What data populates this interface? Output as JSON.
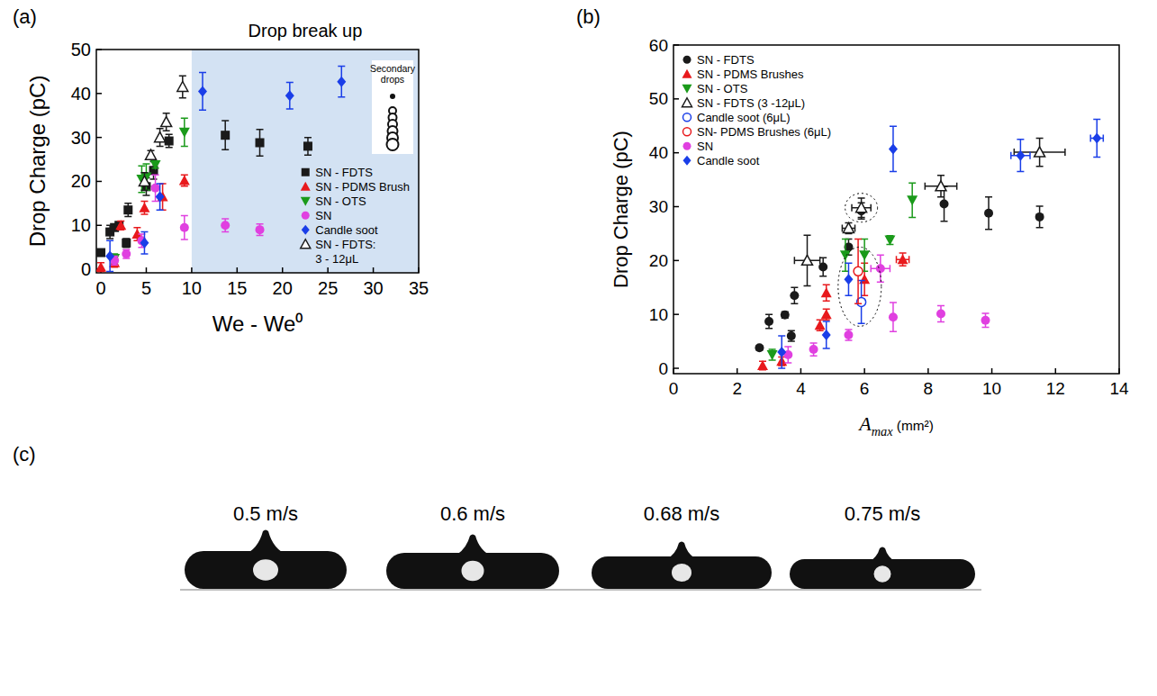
{
  "chart_data": [
    {
      "type": "scatter",
      "panel_label": "(a)",
      "x_label": "We - We⁰",
      "y_label": "Drop Charge (pC)",
      "xlim": [
        -0.5,
        35
      ],
      "ylim": [
        -0.8,
        50
      ],
      "xticks": [
        0,
        5,
        10,
        15,
        20,
        25,
        30,
        35
      ],
      "yticks": [
        0,
        10,
        20,
        30,
        40,
        50
      ],
      "legend": "lower right",
      "shaded_region": {
        "text": "Drop break up",
        "x": [
          10,
          35
        ]
      },
      "inset_label": "Secondary drops",
      "series": [
        {
          "name": "SN - FDTS",
          "color": "#1a1a1a",
          "marker": "square",
          "x": [
            0,
            1,
            1.5,
            2,
            2.8,
            3,
            5,
            5.8,
            7.5,
            13.7,
            17.5,
            22.8
          ],
          "values": [
            3.8,
            8.5,
            9.5,
            10,
            6,
            13.5,
            18.8,
            22.5,
            29.2,
            30.5,
            28.8,
            28
          ],
          "errors": [
            0.5,
            1.5,
            0.5,
            0.5,
            1,
            1.5,
            2,
            2,
            1.5,
            3.3,
            3,
            2
          ]
        },
        {
          "name": "SN - PDMS Brush",
          "color": "#e8191c",
          "marker": "triangle",
          "x": [
            0,
            1.5,
            2.2,
            4,
            4.8,
            6.8,
            9.2
          ],
          "values": [
            0.5,
            1.5,
            10,
            8,
            14,
            16.5,
            20.2
          ],
          "errors": [
            1,
            1,
            1,
            1.5,
            1.5,
            3,
            1.3
          ]
        },
        {
          "name": "SN - OTS",
          "color": "#1a9a1a",
          "marker": "triangle-down",
          "x": [
            1.5,
            4.5,
            5,
            6,
            9.2
          ],
          "values": [
            2.5,
            20.5,
            21,
            23.8,
            31.2
          ],
          "errors": [
            1,
            3,
            3,
            0.8,
            3.2
          ]
        },
        {
          "name": "SN",
          "color": "#e040e0",
          "marker": "circle",
          "x": [
            1.5,
            2.8,
            4.5,
            6,
            9.2,
            13.7,
            17.5
          ],
          "values": [
            2,
            3.5,
            6.5,
            18.5,
            9.5,
            10,
            9
          ],
          "errors": [
            1,
            1,
            1.5,
            3,
            2.7,
            1.5,
            1.3
          ]
        },
        {
          "name": "Candle soot",
          "color": "#1a3ee8",
          "marker": "diamond",
          "x": [
            1,
            4.8,
            6.5,
            11.2,
            20.8,
            26.5
          ],
          "values": [
            3,
            6,
            16.5,
            40.5,
            39.5,
            42.7
          ],
          "errors": [
            3.5,
            2.5,
            3,
            4.3,
            3,
            3.5
          ]
        },
        {
          "name": "SN - FDTS: 3 - 12μL",
          "color": "#1a1a1a",
          "marker": "open-triangle",
          "x": [
            4.8,
            5.5,
            6.5,
            7.2,
            9
          ],
          "values": [
            20,
            26,
            30,
            33.5,
            41.5
          ],
          "errors": [
            2,
            1,
            2,
            2,
            2.5
          ]
        }
      ]
    },
    {
      "type": "scatter",
      "panel_label": "(b)",
      "x_label": "A",
      "x_label_subscript": "max",
      "x_label_suffix": " (mm²)",
      "y_label": "Drop Charge (pC)",
      "xlim": [
        0,
        14
      ],
      "ylim": [
        -1,
        60
      ],
      "xticks": [
        0,
        2,
        4,
        6,
        8,
        10,
        12,
        14
      ],
      "yticks": [
        0,
        10,
        20,
        30,
        40,
        50,
        60
      ],
      "legend": "upper left",
      "series": [
        {
          "name": "SN - FDTS",
          "color": "#1a1a1a",
          "marker": "circle",
          "x": [
            2.7,
            3,
            3.5,
            3.7,
            3.8,
            4.7,
            5.5,
            5.9,
            8.5,
            9.9,
            11.5
          ],
          "values": [
            3.8,
            8.7,
            9.9,
            6,
            13.5,
            18.8,
            22.5,
            29.2,
            30.5,
            28.8,
            28.1
          ],
          "errors": [
            0.4,
            1.3,
            0.6,
            1,
            1.5,
            1.7,
            1.5,
            1.5,
            3.2,
            3,
            2
          ]
        },
        {
          "name": "SN - PDMS Brushes",
          "color": "#e8191c",
          "marker": "triangle",
          "x": [
            2.8,
            3.4,
            4.6,
            4.8,
            4.8,
            6,
            7.2
          ],
          "values": [
            0.5,
            1.3,
            8,
            10,
            14,
            16.5,
            20.2
          ],
          "errors": [
            0.8,
            0.8,
            1,
            1,
            1.5,
            3,
            1.2
          ],
          "x_errors": [
            0,
            0,
            0,
            0,
            0,
            0,
            0.2
          ]
        },
        {
          "name": "SN - OTS",
          "color": "#1a9a1a",
          "marker": "triangle-down",
          "x": [
            3.1,
            5.4,
            6,
            6.8,
            7.5
          ],
          "values": [
            2.5,
            21,
            21,
            23.8,
            31.2
          ],
          "errors": [
            1,
            3,
            3,
            0.8,
            3.2
          ]
        },
        {
          "name": "SN - FDTS (3 -12μL)",
          "color": "#1a1a1a",
          "marker": "open-triangle",
          "x": [
            4.2,
            5.5,
            5.9,
            8.4,
            11.5
          ],
          "values": [
            20,
            26,
            29.8,
            33.8,
            40.1
          ],
          "errors": [
            4.7,
            1,
            1.8,
            2,
            2.6
          ],
          "x_errors": [
            0.4,
            0.2,
            0.3,
            0.5,
            0.8
          ]
        },
        {
          "name": "Candle soot (6μL)",
          "color": "#1a3ee8",
          "marker": "open-circle",
          "x": [
            5.9
          ],
          "values": [
            12.3
          ],
          "errors": [
            4
          ]
        },
        {
          "name": "SN- PDMS Brushes (6μL)",
          "color": "#e8191c",
          "marker": "open-circle",
          "x": [
            5.8
          ],
          "values": [
            18
          ],
          "errors": [
            6
          ]
        },
        {
          "name": "SN",
          "color": "#e040e0",
          "marker": "circle",
          "x": [
            3.6,
            4.4,
            5.5,
            6.5,
            6.9,
            8.4,
            9.8
          ],
          "values": [
            2.5,
            3.5,
            6.2,
            18.5,
            9.5,
            10.1,
            8.9
          ],
          "errors": [
            1.5,
            1.2,
            1,
            2.5,
            2.7,
            1.5,
            1.3
          ],
          "x_errors": [
            0,
            0,
            0,
            0.3,
            0,
            0,
            0
          ]
        },
        {
          "name": "Candle soot",
          "color": "#1a3ee8",
          "marker": "diamond",
          "x": [
            3.4,
            4.8,
            5.5,
            6.9,
            10.9,
            13.3
          ],
          "values": [
            3,
            6.2,
            16.5,
            40.7,
            39.5,
            42.7
          ],
          "errors": [
            3,
            2.5,
            3,
            4.2,
            3,
            3.5
          ],
          "x_errors": [
            0,
            0,
            0,
            0,
            0.3,
            0.2
          ]
        }
      ]
    }
  ],
  "panel_c": {
    "panel_label": "(c)",
    "captions": [
      "0.5 m/s",
      "0.6 m/s",
      "0.68 m/s",
      "0.75 m/s"
    ]
  }
}
